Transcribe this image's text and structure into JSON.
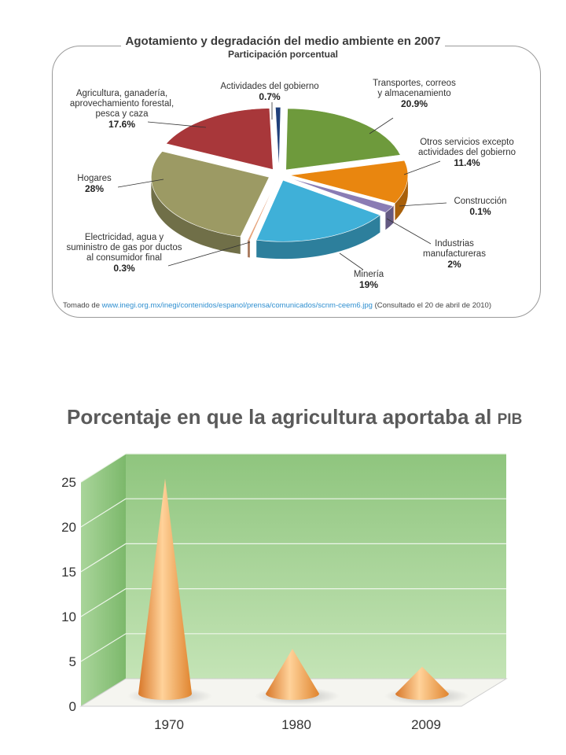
{
  "chart_data": [
    {
      "type": "pie",
      "title": "Agotamiento y degradación del medio ambiente en 2007",
      "subtitle": "Participación porcentual",
      "slices": [
        {
          "label": "Actividades del gobierno",
          "value": "0.7%",
          "share": 0.7,
          "color": "#1f3f7a"
        },
        {
          "label": "Transportes, correos y almacenamiento",
          "value": "20.9%",
          "share": 20.9,
          "color": "#6e9a3c"
        },
        {
          "label": "Otros servicios excepto actividades del gobierno",
          "value": "11.4%",
          "share": 11.4,
          "color": "#e9860f"
        },
        {
          "label": "Construcción",
          "value": "0.1%",
          "share": 0.1,
          "color": "#a02020"
        },
        {
          "label": "Industrias manufactureras",
          "value": "2%",
          "share": 2,
          "color": "#8a7cb4"
        },
        {
          "label": "Minería",
          "value": "19%",
          "share": 19,
          "color": "#3fb0d8"
        },
        {
          "label": "Electricidad, agua y suministro de gas por ductos al consumidor final",
          "value": "0.3%",
          "share": 0.3,
          "color": "#e6a37a"
        },
        {
          "label": "Hogares",
          "value": "28%",
          "share": 28,
          "color": "#9c9a64"
        },
        {
          "label": "Agricultura, ganadería, aprovechamiento forestal, pesca y caza",
          "value": "17.6%",
          "share": 17.6,
          "color": "#a8373a"
        }
      ],
      "labels": {
        "gobierno": "Actividades del gobierno",
        "transportes_1": "Transportes, correos",
        "transportes_2": "y almacenamiento",
        "otros_1": "Otros servicios excepto",
        "otros_2": "actividades del gobierno",
        "construccion": "Construcción",
        "industrias_1": "Industrias",
        "industrias_2": "manufactureras",
        "mineria": "Minería",
        "electricidad_1": "Electricidad, agua y",
        "electricidad_2": "suministro de gas por ductos",
        "electricidad_3": "al consumidor final",
        "hogares": "Hogares",
        "agricultura_1": "Agricultura, ganadería,",
        "agricultura_2": "aprovechamiento forestal,",
        "agricultura_3": "pesca y caza"
      },
      "source": {
        "prefix": "Tomado de ",
        "url": "www.inegi.org.mx/inegi/contenidos/espanol/prensa/comunicados/scnm-ceem6.jpg",
        "suffix": " (Consultado el 20 de abril de 2010)"
      }
    },
    {
      "type": "bar",
      "title": "Porcentaje en que la agricultura aportaba al",
      "title_suffix": "PIB",
      "categories": [
        "1970",
        "1980",
        "2009"
      ],
      "values": [
        24,
        5,
        3
      ],
      "yticks": [
        "0",
        "5",
        "10",
        "15",
        "20",
        "25"
      ],
      "ylim": [
        0,
        25
      ],
      "grid": true,
      "colors": {
        "wall": "#a9d39a",
        "cone": "#f2a455"
      }
    }
  ]
}
